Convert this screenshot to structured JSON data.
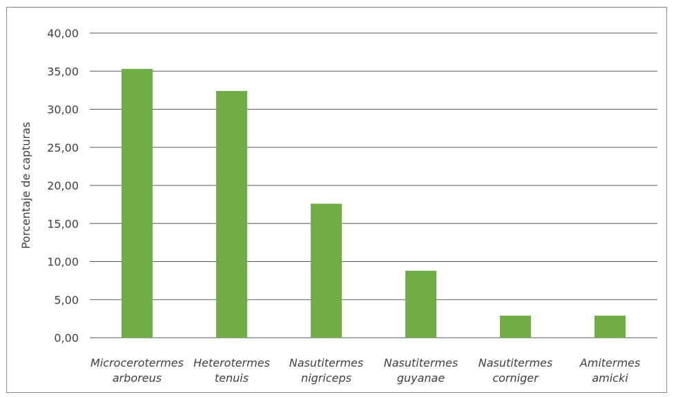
{
  "chart_data": {
    "type": "bar",
    "title": "",
    "xlabel": "",
    "ylabel": "Porcentaje de capturas",
    "ylim": [
      0,
      40
    ],
    "yticks": [
      "0,00",
      "5,00",
      "10,00",
      "15,00",
      "20,00",
      "25,00",
      "30,00",
      "35,00",
      "40,00"
    ],
    "ytick_values": [
      0,
      5,
      10,
      15,
      20,
      25,
      30,
      35,
      40
    ],
    "grid": true,
    "legend": "none",
    "categories": [
      [
        "Microcerotermes",
        "arboreus"
      ],
      [
        "Heterotermes",
        "tenuis"
      ],
      [
        "Nasutitermes",
        "nigriceps"
      ],
      [
        "Nasutitermes",
        "guyanae"
      ],
      [
        "Nasutitermes",
        "corniger"
      ],
      [
        "Amitermes",
        "amicki"
      ]
    ],
    "values": [
      35.3,
      32.4,
      17.6,
      8.8,
      2.9,
      2.9
    ],
    "bar_color": "#70ad47",
    "grid_color": "#595959"
  }
}
